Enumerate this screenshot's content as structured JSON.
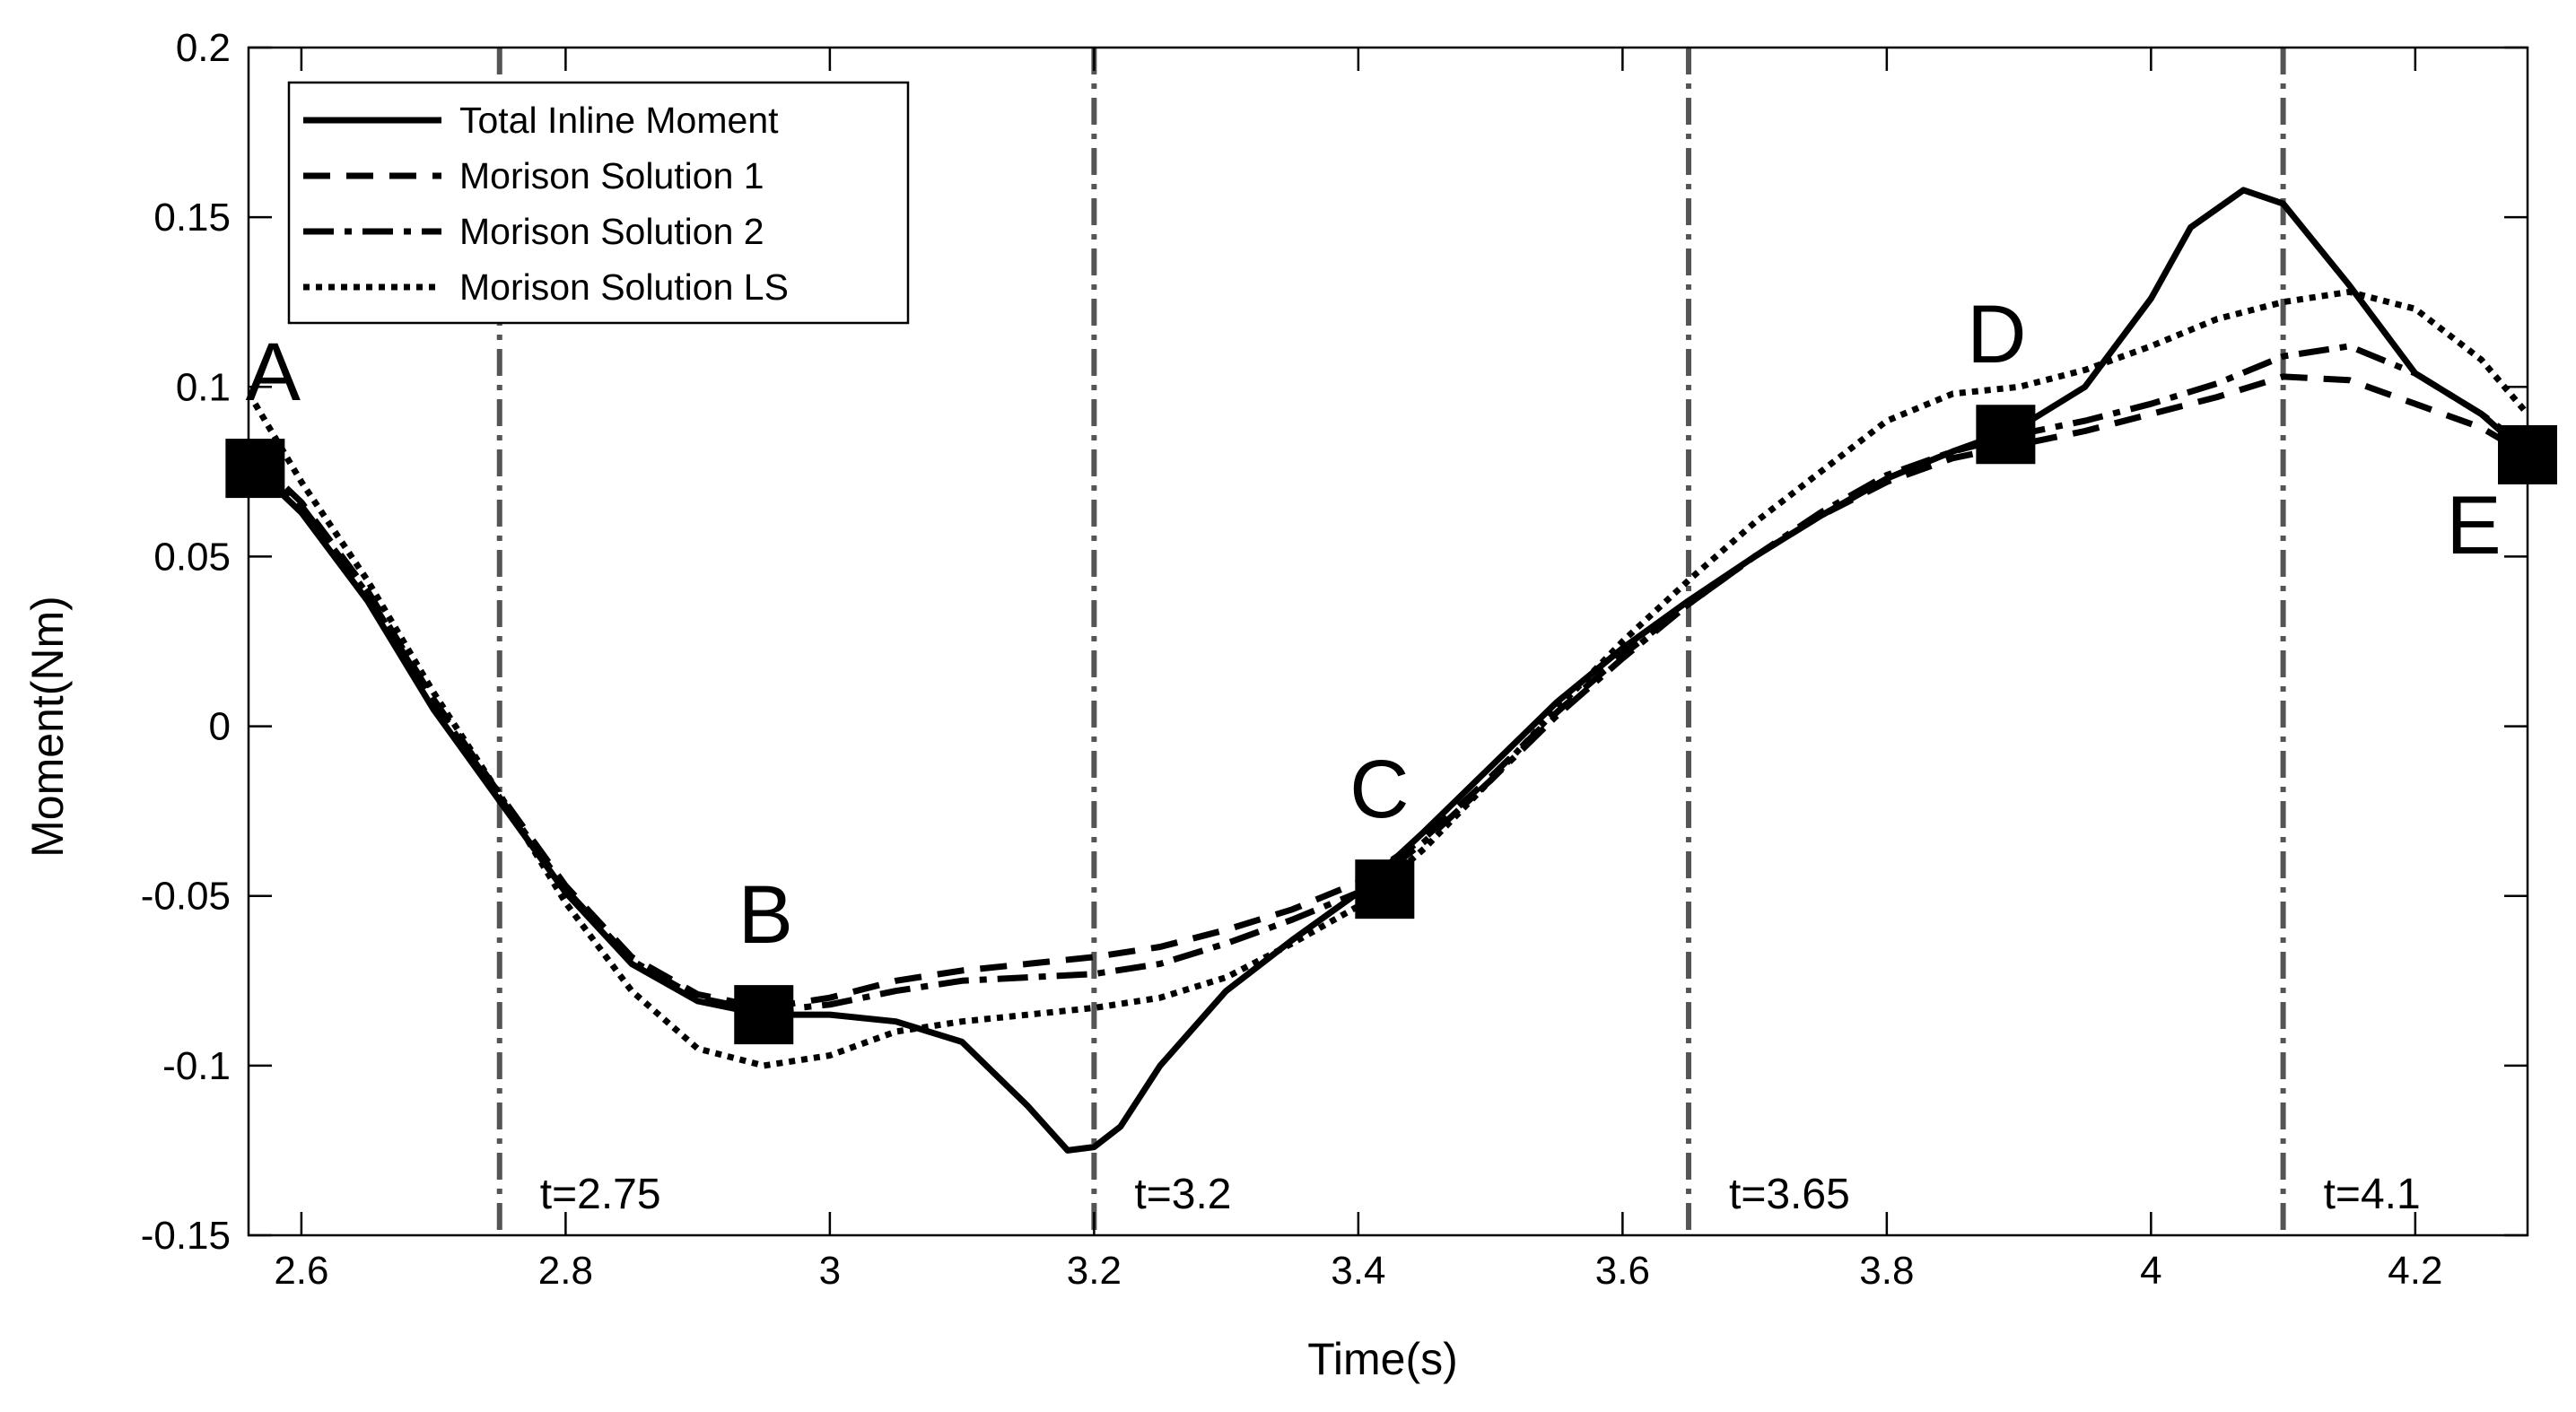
{
  "chart_data": {
    "type": "line",
    "title": "",
    "xlabel": "Time(s)",
    "ylabel": "Moment(Nm)",
    "xlim": [
      2.56,
      4.285
    ],
    "ylim": [
      -0.15,
      0.2
    ],
    "xticks": [
      2.6,
      2.8,
      3.0,
      3.2,
      3.4,
      3.6,
      3.8,
      4.0,
      4.2
    ],
    "xtick_labels": [
      "2.6",
      "2.8",
      "3",
      "3.2",
      "3.4",
      "3.6",
      "3.8",
      "4",
      "4.2"
    ],
    "yticks": [
      -0.15,
      -0.1,
      -0.05,
      0,
      0.05,
      0.1,
      0.15,
      0.2
    ],
    "ytick_labels": [
      "-0.15",
      "-0.1",
      "-0.05",
      "0",
      "0.05",
      "0.1",
      "0.15",
      "0.2"
    ],
    "grid": false,
    "legend_position": "top-left",
    "series": [
      {
        "name": "Total Inline Moment",
        "style": "solid",
        "x": [
          2.565,
          2.6,
          2.65,
          2.7,
          2.75,
          2.8,
          2.85,
          2.9,
          2.95,
          3.0,
          3.05,
          3.1,
          3.15,
          3.18,
          3.2,
          3.22,
          3.25,
          3.3,
          3.35,
          3.4,
          3.45,
          3.5,
          3.55,
          3.6,
          3.65,
          3.7,
          3.75,
          3.8,
          3.85,
          3.9,
          3.95,
          4.0,
          4.03,
          4.07,
          4.1,
          4.15,
          4.2,
          4.25,
          4.285
        ],
        "y": [
          0.076,
          0.063,
          0.037,
          0.005,
          -0.022,
          -0.049,
          -0.07,
          -0.081,
          -0.085,
          -0.085,
          -0.087,
          -0.093,
          -0.112,
          -0.125,
          -0.124,
          -0.118,
          -0.1,
          -0.078,
          -0.063,
          -0.049,
          -0.031,
          -0.012,
          0.007,
          0.023,
          0.037,
          0.05,
          0.062,
          0.073,
          0.081,
          0.088,
          0.1,
          0.126,
          0.147,
          0.158,
          0.154,
          0.13,
          0.104,
          0.092,
          0.08
        ]
      },
      {
        "name": "Morison Solution 1",
        "style": "dashed",
        "x": [
          2.565,
          2.6,
          2.65,
          2.7,
          2.75,
          2.8,
          2.85,
          2.9,
          2.95,
          3.0,
          3.05,
          3.1,
          3.15,
          3.2,
          3.25,
          3.3,
          3.35,
          3.4,
          3.45,
          3.5,
          3.55,
          3.6,
          3.65,
          3.7,
          3.75,
          3.8,
          3.85,
          3.9,
          3.95,
          4.0,
          4.05,
          4.1,
          4.15,
          4.2,
          4.25,
          4.285
        ],
        "y": [
          0.079,
          0.066,
          0.04,
          0.008,
          -0.02,
          -0.047,
          -0.068,
          -0.079,
          -0.083,
          -0.08,
          -0.075,
          -0.072,
          -0.07,
          -0.068,
          -0.065,
          -0.06,
          -0.054,
          -0.046,
          -0.033,
          -0.015,
          0.004,
          0.021,
          0.036,
          0.05,
          0.062,
          0.072,
          0.079,
          0.083,
          0.087,
          0.092,
          0.097,
          0.103,
          0.102,
          0.095,
          0.088,
          0.08
        ]
      },
      {
        "name": "Morison Solution 2",
        "style": "dashdot",
        "x": [
          2.565,
          2.6,
          2.65,
          2.7,
          2.75,
          2.8,
          2.85,
          2.9,
          2.95,
          3.0,
          3.05,
          3.1,
          3.15,
          3.2,
          3.25,
          3.3,
          3.35,
          3.4,
          3.45,
          3.5,
          3.55,
          3.6,
          3.65,
          3.7,
          3.75,
          3.8,
          3.85,
          3.9,
          3.95,
          4.0,
          4.05,
          4.1,
          4.15,
          4.2,
          4.25,
          4.285
        ],
        "y": [
          0.078,
          0.065,
          0.039,
          0.007,
          -0.021,
          -0.048,
          -0.069,
          -0.08,
          -0.084,
          -0.082,
          -0.078,
          -0.075,
          -0.074,
          -0.073,
          -0.07,
          -0.064,
          -0.057,
          -0.049,
          -0.034,
          -0.016,
          0.003,
          0.02,
          0.036,
          0.05,
          0.063,
          0.074,
          0.081,
          0.086,
          0.09,
          0.095,
          0.101,
          0.109,
          0.112,
          0.104,
          0.092,
          0.082
        ]
      },
      {
        "name": "Morison Solution LS",
        "style": "dotted",
        "x": [
          2.565,
          2.6,
          2.65,
          2.7,
          2.75,
          2.8,
          2.85,
          2.9,
          2.95,
          3.0,
          3.05,
          3.1,
          3.15,
          3.2,
          3.25,
          3.3,
          3.35,
          3.4,
          3.45,
          3.5,
          3.55,
          3.6,
          3.65,
          3.7,
          3.75,
          3.8,
          3.85,
          3.9,
          3.95,
          4.0,
          4.05,
          4.1,
          4.15,
          4.2,
          4.25,
          4.285
        ],
        "y": [
          0.095,
          0.072,
          0.043,
          0.01,
          -0.02,
          -0.052,
          -0.078,
          -0.095,
          -0.1,
          -0.097,
          -0.09,
          -0.087,
          -0.085,
          -0.083,
          -0.08,
          -0.074,
          -0.064,
          -0.053,
          -0.036,
          -0.016,
          0.005,
          0.025,
          0.043,
          0.06,
          0.075,
          0.09,
          0.098,
          0.1,
          0.105,
          0.112,
          0.12,
          0.125,
          0.128,
          0.123,
          0.108,
          0.092
        ]
      }
    ],
    "vertical_lines": [
      {
        "x": 2.75,
        "label": "t=2.75"
      },
      {
        "x": 3.2,
        "label": "t=3.2"
      },
      {
        "x": 3.65,
        "label": "t=3.65"
      },
      {
        "x": 4.1,
        "label": "t=4.1"
      }
    ],
    "points": [
      {
        "label": "A",
        "x": 2.565,
        "y": 0.076
      },
      {
        "label": "B",
        "x": 2.95,
        "y": -0.085
      },
      {
        "label": "C",
        "x": 3.42,
        "y": -0.048
      },
      {
        "label": "D",
        "x": 3.89,
        "y": 0.086
      },
      {
        "label": "E",
        "x": 4.285,
        "y": 0.08
      }
    ]
  }
}
